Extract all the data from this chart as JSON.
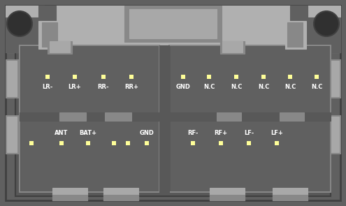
{
  "colors": {
    "outer_frame": "#606060",
    "outer_frame_dark": "#484848",
    "light_bg": "#b0b0b0",
    "mid_gray": "#888888",
    "dark_gray": "#585858",
    "connector_dark": "#606060",
    "connector_darker": "#585858",
    "pin_yellow": "#ffff99",
    "text_white": "#ffffff",
    "very_dark": "#303030",
    "tab_light": "#a8a8a8",
    "border_line": "#404040"
  },
  "top_left_pins": [
    "LR-",
    "LR+",
    "RR-",
    "RR+"
  ],
  "top_right_pins": [
    "GND",
    "N.C",
    "N.C",
    "N.C",
    "N.C",
    "N.C"
  ],
  "bottom_left_labels": [
    "ANT",
    "BAT+",
    "GND"
  ],
  "bottom_right_labels": [
    "RF-",
    "RF+",
    "LF-",
    "LF+"
  ],
  "pin_size": 6,
  "font_size": 6.0
}
